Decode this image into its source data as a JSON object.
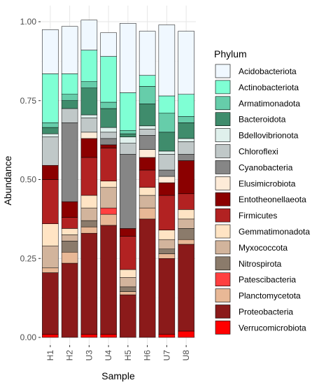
{
  "chart_data": {
    "type": "bar",
    "stacked": true,
    "categories": [
      "H1",
      "H2",
      "U3",
      "U4",
      "H5",
      "H6",
      "U7",
      "U8"
    ],
    "xlabel": "Sample",
    "ylabel": "Abundance",
    "ylim": [
      0,
      1.05
    ],
    "yticks": [
      "0.00",
      "0.25",
      "0.50",
      "0.75",
      "1.00"
    ],
    "grid": true,
    "legend_title": "Phylum",
    "legend_position": "right",
    "series": [
      {
        "name": "Verrucomicrobiota",
        "color": "#FF0000",
        "values": [
          0.01,
          0.0,
          0.01,
          0.01,
          0.0,
          0.0,
          0.01,
          0.02
        ]
      },
      {
        "name": "Proteobacteria",
        "color": "#8B1A1A",
        "values": [
          0.195,
          0.235,
          0.32,
          0.345,
          0.135,
          0.375,
          0.24,
          0.275
        ]
      },
      {
        "name": "Planctomycetota",
        "color": "#E8B896",
        "values": [
          0.015,
          0.035,
          0.02,
          0.035,
          0.01,
          0.035,
          0.015,
          0.015
        ]
      },
      {
        "name": "Patescibacteria",
        "color": "#FF4040",
        "values": [
          0.0,
          0.0,
          0.0,
          0.02,
          0.0,
          0.0,
          0.0,
          0.0
        ]
      },
      {
        "name": "Nitrospirota",
        "color": "#8B7B6B",
        "values": [
          0.0,
          0.035,
          0.02,
          0.0,
          0.015,
          0.0,
          0.015,
          0.035
        ]
      },
      {
        "name": "Myxococcota",
        "color": "#D2B49C",
        "values": [
          0.07,
          0.02,
          0.04,
          0.065,
          0.03,
          0.04,
          0.03,
          0.03
        ]
      },
      {
        "name": "Gemmatimonadota",
        "color": "#FFE4C4",
        "values": [
          0.07,
          0.02,
          0.04,
          0.02,
          0.025,
          0.025,
          0.03,
          0.03
        ]
      },
      {
        "name": "Firmicutes",
        "color": "#B22222",
        "values": [
          0.14,
          0.035,
          0.12,
          0.105,
          0.105,
          0.055,
          0.11,
          0.05
        ]
      },
      {
        "name": "Entotheonellaeota",
        "color": "#8B0000",
        "values": [
          0.045,
          0.05,
          0.06,
          0.01,
          0.025,
          0.04,
          0.04,
          0.105
        ]
      },
      {
        "name": "Elusimicrobiota",
        "color": "#FDEBD8",
        "values": [
          0.0,
          0.0,
          0.02,
          0.0,
          0.0,
          0.025,
          0.02,
          0.0
        ]
      },
      {
        "name": "Cyanobacteria",
        "color": "#868686",
        "values": [
          0.0,
          0.25,
          0.0,
          0.02,
          0.235,
          0.045,
          0.02,
          0.02
        ]
      },
      {
        "name": "Chloroflexi",
        "color": "#C0C8C8",
        "values": [
          0.09,
          0.045,
          0.045,
          0.02,
          0.035,
          0.02,
          0.05,
          0.04
        ]
      },
      {
        "name": "Bdellovibrionota",
        "color": "#DFF0EC",
        "values": [
          0.01,
          0.0,
          0.01,
          0.015,
          0.02,
          0.01,
          0.01,
          0.01
        ]
      },
      {
        "name": "Bacteroidota",
        "color": "#3F8C6C",
        "values": [
          0.02,
          0.025,
          0.085,
          0.06,
          0.01,
          0.07,
          0.06,
          0.05
        ]
      },
      {
        "name": "Armatimonadota",
        "color": "#66CDAA",
        "values": [
          0.015,
          0.02,
          0.02,
          0.02,
          0.01,
          0.055,
          0.06,
          0.02
        ]
      },
      {
        "name": "Actinobacteriota",
        "color": "#7FFFD4",
        "values": [
          0.155,
          0.065,
          0.1,
          0.145,
          0.12,
          0.035,
          0.055,
          0.07
        ]
      },
      {
        "name": "Acidobacteriota",
        "color": "#F0F8FF",
        "values": [
          0.14,
          0.15,
          0.095,
          0.075,
          0.22,
          0.14,
          0.225,
          0.2
        ]
      }
    ],
    "legend_order": [
      "Acidobacteriota",
      "Actinobacteriota",
      "Armatimonadota",
      "Bacteroidota",
      "Bdellovibrionota",
      "Chloroflexi",
      "Cyanobacteria",
      "Elusimicrobiota",
      "Entotheonellaeota",
      "Firmicutes",
      "Gemmatimonadota",
      "Myxococcota",
      "Nitrospirota",
      "Patescibacteria",
      "Planctomycetota",
      "Proteobacteria",
      "Verrucomicrobiota"
    ]
  }
}
